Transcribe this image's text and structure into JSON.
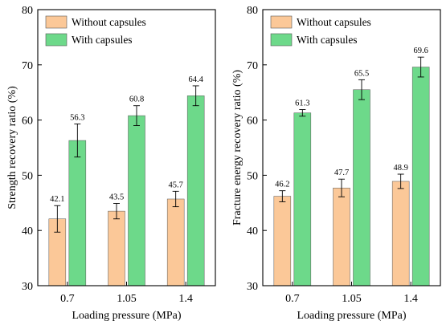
{
  "colors": {
    "without": "#FBC898",
    "with": "#6DD98A"
  },
  "chart_data": [
    {
      "type": "bar",
      "ylabel": "Strength recovery ratio (%)",
      "xlabel": "Loading pressure (MPa)",
      "categories": [
        "0.7",
        "1.05",
        "1.4"
      ],
      "ylim": [
        30,
        80
      ],
      "yticks": [
        "30",
        "40",
        "50",
        "60",
        "70",
        "80"
      ],
      "legend_position": "top-left",
      "grid": false,
      "series": [
        {
          "name": "Without capsules",
          "values": [
            42.1,
            43.5,
            45.7
          ],
          "errors": [
            2.4,
            1.4,
            1.4
          ],
          "labels": [
            "42.1",
            "43.5",
            "45.7"
          ]
        },
        {
          "name": "With capsules",
          "values": [
            56.3,
            60.8,
            64.4
          ],
          "errors": [
            3.0,
            1.8,
            1.8
          ],
          "labels": [
            "56.3",
            "60.8",
            "64.4"
          ]
        }
      ]
    },
    {
      "type": "bar",
      "ylabel": "Fracture energy recovery ratio (%)",
      "xlabel": "Loading pressure (MPa)",
      "categories": [
        "0.7",
        "1.05",
        "1.4"
      ],
      "ylim": [
        30,
        80
      ],
      "yticks": [
        "30",
        "40",
        "50",
        "60",
        "70",
        "80"
      ],
      "legend_position": "top-left",
      "grid": false,
      "series": [
        {
          "name": "Without capsules",
          "values": [
            46.2,
            47.7,
            48.9
          ],
          "errors": [
            1.0,
            1.6,
            1.3
          ],
          "labels": [
            "46.2",
            "47.7",
            "48.9"
          ]
        },
        {
          "name": "With capsules",
          "values": [
            61.3,
            65.5,
            69.6
          ],
          "errors": [
            0.6,
            1.8,
            1.8
          ],
          "labels": [
            "61.3",
            "65.5",
            "69.6"
          ]
        }
      ]
    }
  ]
}
